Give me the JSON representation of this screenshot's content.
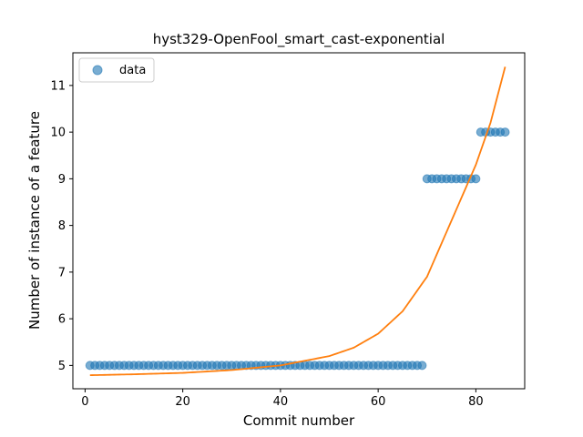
{
  "chart_data": {
    "type": "scatter",
    "title": "hyst329-OpenFool_smart_cast-exponential",
    "xlabel": "Commit number",
    "ylabel": "Number of instance of a feature",
    "xlim": [
      -2.5,
      90
    ],
    "ylim": [
      4.5,
      11.7
    ],
    "xticks": [
      0,
      20,
      40,
      60,
      80
    ],
    "yticks": [
      5,
      6,
      7,
      8,
      9,
      10,
      11
    ],
    "grid": false,
    "legend": {
      "position": "top-left",
      "entries": [
        "data"
      ]
    },
    "series": [
      {
        "name": "data",
        "kind": "scatter",
        "color": "#1f77b4",
        "segments": [
          {
            "x_from": 1,
            "x_to": 69,
            "y": 5
          },
          {
            "x_from": 70,
            "x_to": 80,
            "y": 9
          },
          {
            "x_from": 81,
            "x_to": 86,
            "y": 10
          }
        ]
      },
      {
        "name": "",
        "kind": "line",
        "color": "#ff7f0e",
        "points": [
          [
            1,
            4.79
          ],
          [
            10,
            4.81
          ],
          [
            20,
            4.84
          ],
          [
            30,
            4.9
          ],
          [
            40,
            5.0
          ],
          [
            50,
            5.2
          ],
          [
            55,
            5.38
          ],
          [
            60,
            5.68
          ],
          [
            65,
            6.16
          ],
          [
            70,
            6.9
          ],
          [
            75,
            8.1
          ],
          [
            80,
            9.3
          ],
          [
            83,
            10.2
          ],
          [
            86,
            11.4
          ]
        ]
      }
    ]
  }
}
